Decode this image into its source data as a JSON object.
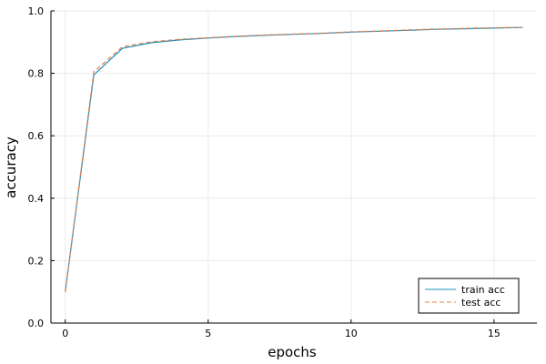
{
  "chart_data": {
    "type": "line",
    "xlabel": "epochs",
    "ylabel": "accuracy",
    "xlim": [
      -0.5,
      16.5
    ],
    "ylim": [
      0.0,
      1.0
    ],
    "x_ticks": [
      0,
      5,
      10,
      15
    ],
    "y_ticks": [
      0.0,
      0.2,
      0.4,
      0.6,
      0.8,
      1.0
    ],
    "x_tick_labels": [
      "0",
      "5",
      "10",
      "15"
    ],
    "y_tick_labels": [
      "0.0",
      "0.2",
      "0.4",
      "0.6",
      "0.8",
      "1.0"
    ],
    "grid": true,
    "legend_position": "bottom-right",
    "x": [
      0,
      1,
      2,
      3,
      4,
      5,
      6,
      7,
      8,
      9,
      10,
      11,
      12,
      13,
      14,
      15,
      16
    ],
    "series": [
      {
        "name": "train acc",
        "color": "#1f8fc2",
        "style": "solid",
        "values": [
          0.1,
          0.795,
          0.88,
          0.898,
          0.907,
          0.913,
          0.918,
          0.922,
          0.925,
          0.928,
          0.932,
          0.935,
          0.938,
          0.941,
          0.943,
          0.945,
          0.947
        ]
      },
      {
        "name": "test acc",
        "color": "#e0804a",
        "style": "dashed",
        "values": [
          0.1,
          0.805,
          0.885,
          0.901,
          0.909,
          0.914,
          0.919,
          0.923,
          0.926,
          0.929,
          0.933,
          0.936,
          0.939,
          0.942,
          0.944,
          0.946,
          0.947
        ]
      }
    ]
  }
}
